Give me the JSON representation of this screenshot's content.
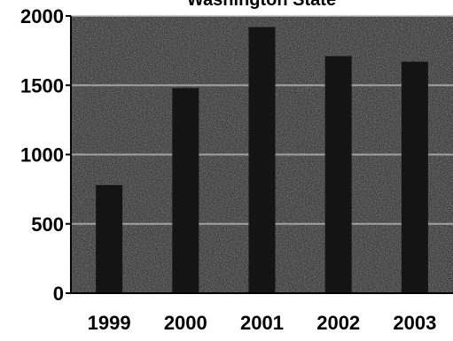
{
  "chart_data": {
    "type": "bar",
    "title": "Washington State",
    "xlabel": "",
    "ylabel": "",
    "categories": [
      "1999",
      "2000",
      "2001",
      "2002",
      "2003"
    ],
    "values": [
      780,
      1480,
      1920,
      1710,
      1670
    ],
    "ylim": [
      0,
      2000
    ],
    "yticks": [
      0,
      500,
      1000,
      1500,
      2000
    ],
    "ytick_labels": [
      "0",
      "500",
      "1000",
      "1500",
      "2000"
    ],
    "grid": true,
    "legend": "none",
    "colors": {
      "plot_background": "#3a3a3a",
      "bar": "#141414",
      "grid": "#bdbdbd",
      "axis": "#000000",
      "text": "#000000"
    }
  }
}
